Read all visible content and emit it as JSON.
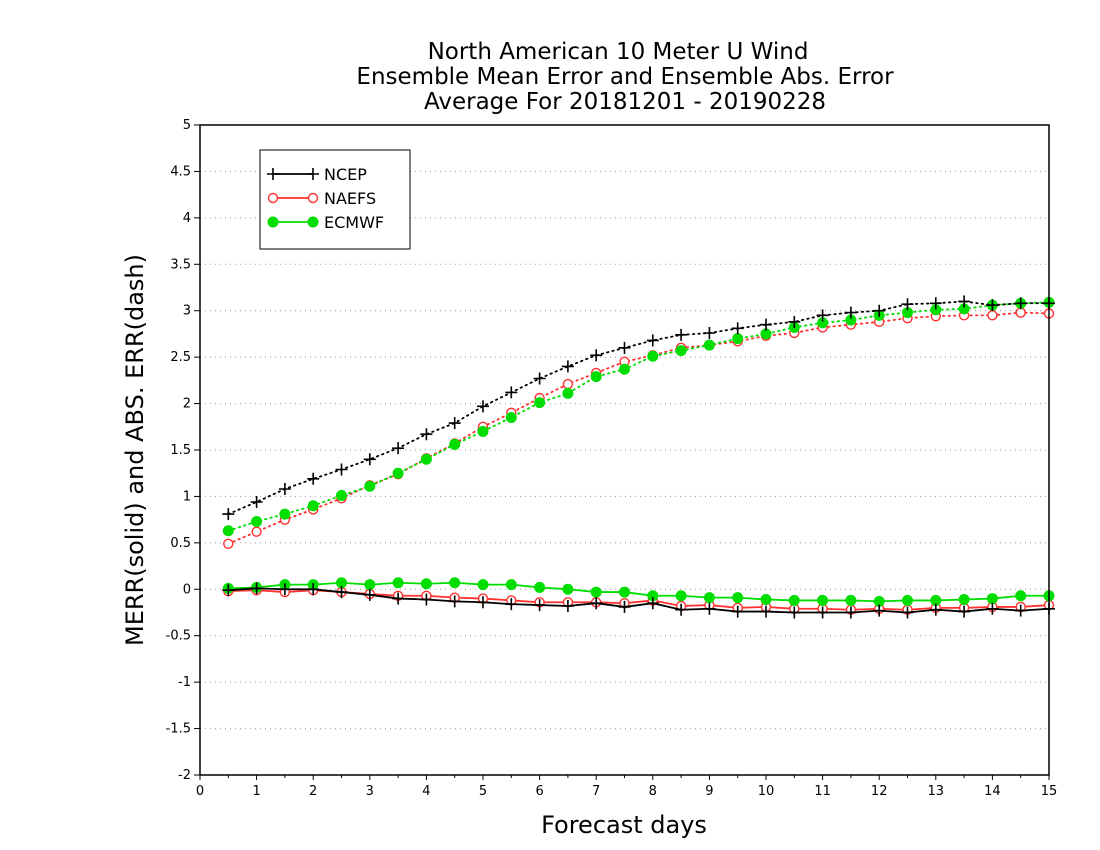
{
  "chart_data": {
    "type": "line",
    "title_lines": [
      "North American 10 Meter U Wind",
      "Ensemble Mean Error and Ensemble Abs. Error",
      "Average For 20181201 - 20190228"
    ],
    "xlabel": "Forecast days",
    "ylabel": "MERR(solid) and ABS. ERR(dash)",
    "xlim": [
      0,
      15
    ],
    "ylim": [
      -2,
      5
    ],
    "xticks": [
      "0",
      "1",
      "2",
      "3",
      "4",
      "5",
      "6",
      "7",
      "8",
      "9",
      "10",
      "11",
      "12",
      "13",
      "14",
      "15"
    ],
    "yticks": [
      "-2",
      "-1.5",
      "-1",
      "-0.5",
      "0",
      "0.5",
      "1",
      "1.5",
      "2",
      "2.5",
      "3",
      "3.5",
      "4",
      "4.5",
      "5"
    ],
    "grid": "horizontal dotted",
    "legend_position": "top-left",
    "x": [
      0.5,
      1,
      1.5,
      2,
      2.5,
      3,
      3.5,
      4,
      4.5,
      5,
      5.5,
      6,
      6.5,
      7,
      7.5,
      8,
      8.5,
      9,
      9.5,
      10,
      10.5,
      11,
      11.5,
      12,
      12.5,
      13,
      13.5,
      14,
      14.5,
      15
    ],
    "series": [
      {
        "name": "NCEP",
        "color": "#000000",
        "marker": "plus",
        "merr": [
          -0.01,
          0.01,
          0.0,
          0.0,
          -0.03,
          -0.06,
          -0.1,
          -0.11,
          -0.13,
          -0.14,
          -0.16,
          -0.17,
          -0.18,
          -0.15,
          -0.19,
          -0.15,
          -0.22,
          -0.21,
          -0.24,
          -0.24,
          -0.25,
          -0.25,
          -0.25,
          -0.23,
          -0.25,
          -0.22,
          -0.24,
          -0.21,
          -0.23,
          -0.21
        ],
        "abs_err": [
          0.81,
          0.94,
          1.08,
          1.19,
          1.29,
          1.4,
          1.52,
          1.67,
          1.79,
          1.97,
          2.12,
          2.27,
          2.4,
          2.52,
          2.6,
          2.68,
          2.74,
          2.76,
          2.81,
          2.85,
          2.88,
          2.95,
          2.98,
          3.0,
          3.07,
          3.08,
          3.1,
          3.06,
          3.08,
          3.08
        ]
      },
      {
        "name": "NAEFS",
        "color": "#ff3030",
        "marker": "open-circle",
        "merr": [
          -0.02,
          -0.01,
          -0.03,
          -0.01,
          -0.03,
          -0.05,
          -0.07,
          -0.07,
          -0.09,
          -0.1,
          -0.12,
          -0.14,
          -0.14,
          -0.14,
          -0.15,
          -0.12,
          -0.18,
          -0.17,
          -0.2,
          -0.19,
          -0.21,
          -0.21,
          -0.22,
          -0.21,
          -0.22,
          -0.2,
          -0.2,
          -0.19,
          -0.19,
          -0.17
        ],
        "abs_err": [
          0.49,
          0.62,
          0.75,
          0.86,
          0.98,
          1.12,
          1.24,
          1.41,
          1.57,
          1.75,
          1.9,
          2.06,
          2.21,
          2.33,
          2.45,
          2.52,
          2.6,
          2.63,
          2.67,
          2.73,
          2.76,
          2.82,
          2.85,
          2.88,
          2.92,
          2.94,
          2.95,
          2.95,
          2.98,
          2.97
        ]
      },
      {
        "name": "ECMWF",
        "color": "#00dd00",
        "marker": "filled-circle",
        "merr": [
          0.01,
          0.02,
          0.05,
          0.05,
          0.07,
          0.05,
          0.07,
          0.06,
          0.07,
          0.05,
          0.05,
          0.02,
          0.0,
          -0.03,
          -0.03,
          -0.07,
          -0.07,
          -0.09,
          -0.09,
          -0.11,
          -0.12,
          -0.12,
          -0.12,
          -0.13,
          -0.12,
          -0.12,
          -0.11,
          -0.1,
          -0.07,
          -0.07
        ],
        "abs_err": [
          0.63,
          0.73,
          0.81,
          0.9,
          1.01,
          1.11,
          1.25,
          1.4,
          1.56,
          1.7,
          1.85,
          2.01,
          2.11,
          2.29,
          2.37,
          2.51,
          2.57,
          2.63,
          2.7,
          2.75,
          2.82,
          2.87,
          2.9,
          2.95,
          2.98,
          3.01,
          3.02,
          3.06,
          3.08,
          3.09
        ]
      }
    ]
  }
}
